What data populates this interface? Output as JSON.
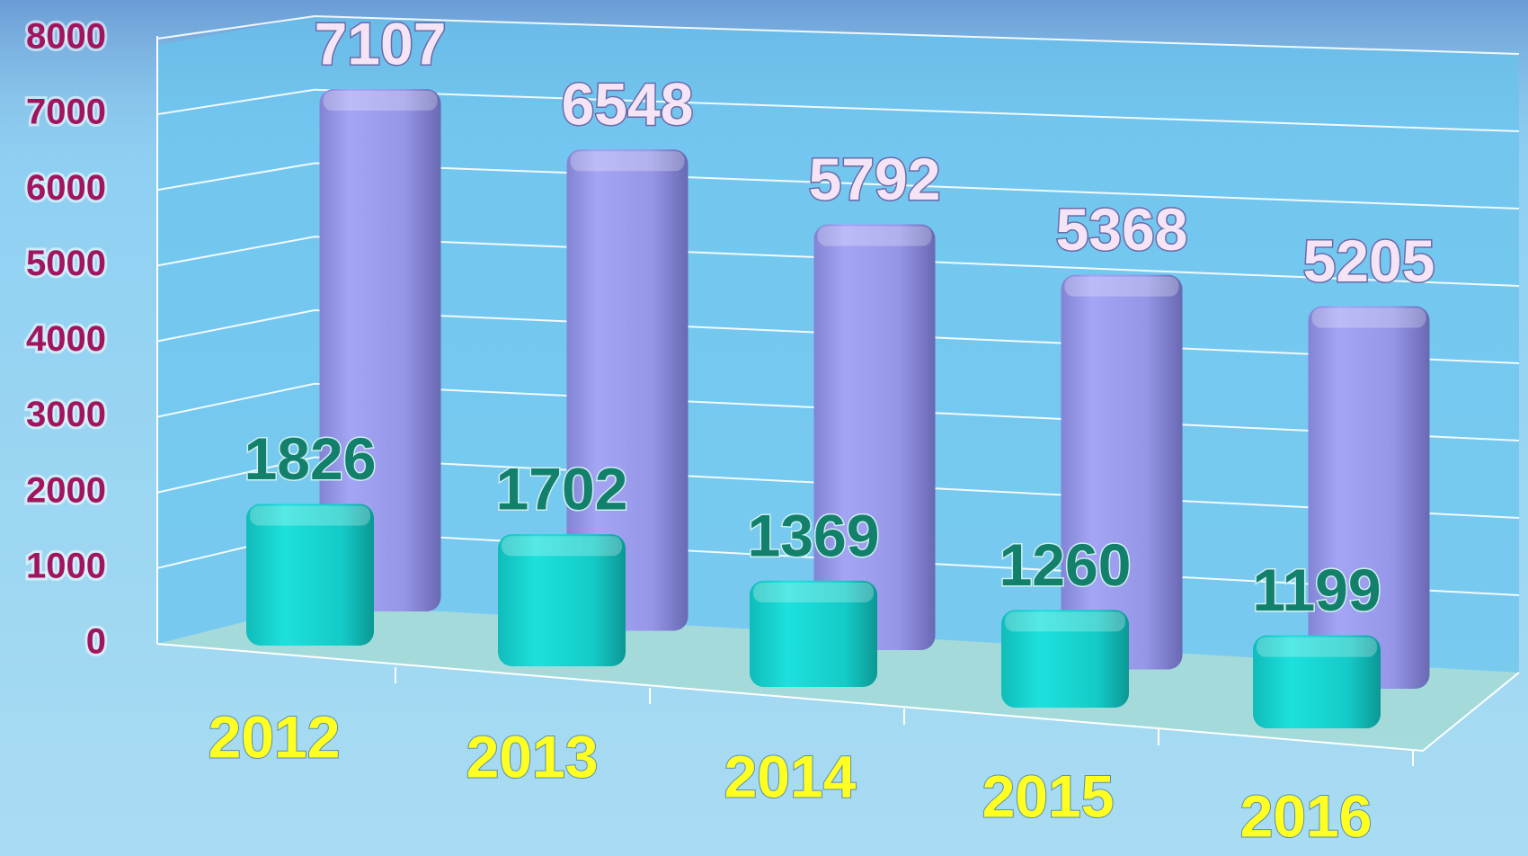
{
  "chart_data": {
    "type": "bar3d",
    "categories": [
      "2012",
      "2013",
      "2014",
      "2015",
      "2016"
    ],
    "series": [
      {
        "color": "#9d9df0",
        "values": [
          7107,
          6548,
          5792,
          5368,
          5205
        ]
      },
      {
        "color": "#16d3d0",
        "values": [
          1826,
          1702,
          1369,
          1260,
          1199
        ]
      }
    ],
    "ylim": [
      0,
      8000
    ],
    "yticks": [
      0,
      1000,
      2000,
      3000,
      4000,
      5000,
      6000,
      7000,
      8000
    ],
    "grid": true
  }
}
